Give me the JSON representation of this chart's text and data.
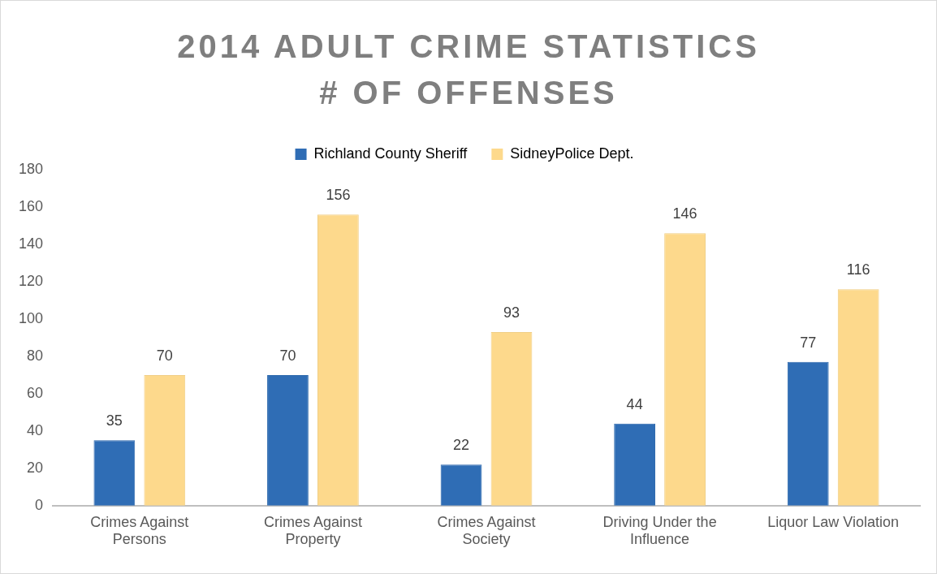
{
  "chart_data": {
    "type": "bar",
    "title": "2014 ADULT CRIME STATISTICS\n# OF OFFENSES",
    "categories": [
      "Crimes Against Persons",
      "Crimes Against Property",
      "Crimes Against Society",
      "Driving Under the Influence",
      "Liquor Law Violation"
    ],
    "series": [
      {
        "name": "Richland County Sheriff",
        "color": "#2f6db5",
        "values": [
          35,
          70,
          22,
          44,
          77
        ]
      },
      {
        "name": "SidneyPolice Dept.",
        "color": "#fdd98c",
        "values": [
          70,
          156,
          93,
          146,
          116
        ]
      }
    ],
    "ylim": [
      0,
      180
    ],
    "yticks": [
      0,
      20,
      40,
      60,
      80,
      100,
      120,
      140,
      160,
      180
    ],
    "grid": false,
    "legend": "top",
    "data_labels": true
  }
}
